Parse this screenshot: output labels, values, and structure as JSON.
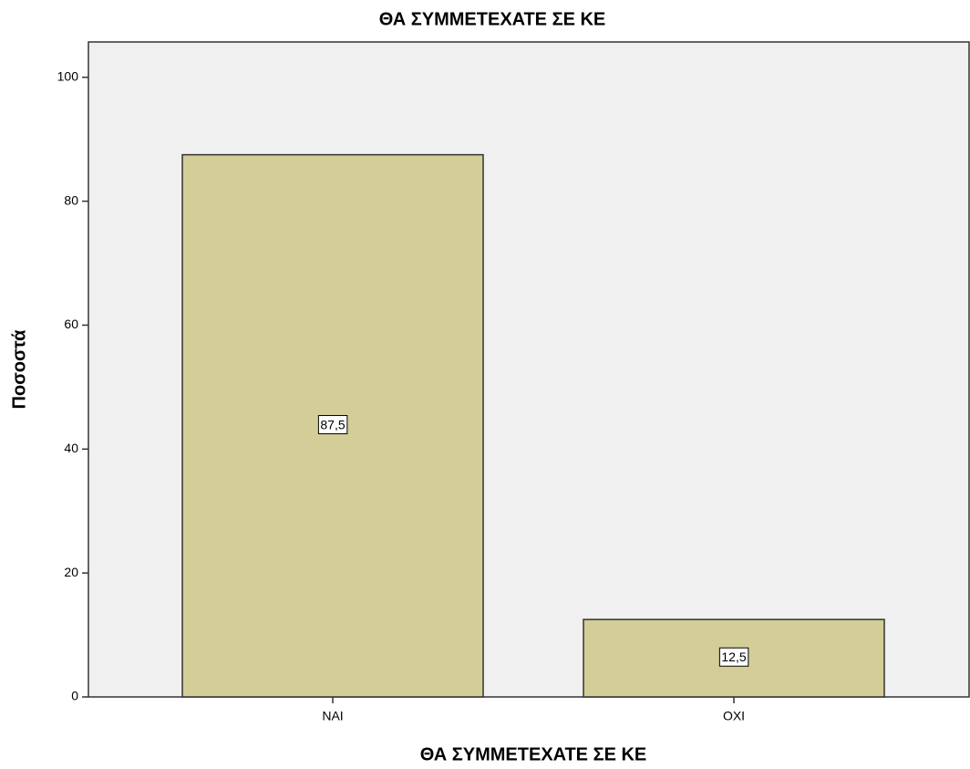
{
  "chart_data": {
    "type": "bar",
    "title": "ΘΑ ΣΥΜΜΕΤΕΧΑΤΕ ΣΕ ΚΕ",
    "x_label": "ΘΑ ΣΥΜΜΕΤΕΧΑΤΕ ΣΕ ΚΕ",
    "y_label": "Ποσοστά",
    "categories": [
      "ΝΑΙ",
      "ΟΧΙ"
    ],
    "values": [
      87.5,
      12.5
    ],
    "value_labels": [
      "87,5",
      "12,5"
    ],
    "color": "#d3ce97",
    "ylim": [
      0,
      105.7
    ],
    "yticks": [
      0,
      20,
      40,
      60,
      80,
      100
    ],
    "grid": false
  }
}
